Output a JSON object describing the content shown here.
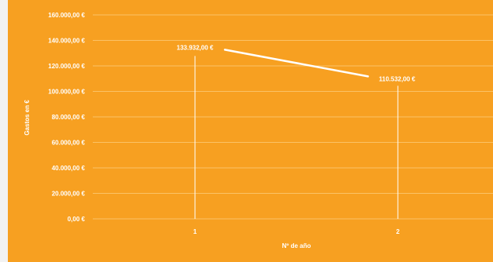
{
  "chart_data": {
    "type": "line",
    "x": [
      "1",
      "2"
    ],
    "series": [
      {
        "values": [
          133932,
          110532
        ],
        "labels": [
          "133.932,00 €",
          "110.532,00 €"
        ]
      }
    ],
    "title": "",
    "xlabel": "Nº de año",
    "ylabel": "Gastos en €",
    "ylim": [
      0,
      160000
    ],
    "yticks": [
      0,
      20000,
      40000,
      60000,
      80000,
      100000,
      120000,
      140000,
      160000
    ],
    "ytick_labels": [
      "0,00 €",
      "20.000,00 €",
      "40.000,00 €",
      "60.000,00 €",
      "80.000,00 €",
      "100.000,00 €",
      "120.000,00 €",
      "140.000,00 €",
      "160.000,00 €"
    ],
    "grid": true,
    "legend": "none",
    "colors": {
      "background": "#f7a021",
      "line": "#ffffff",
      "grid": "#fbc266"
    }
  }
}
